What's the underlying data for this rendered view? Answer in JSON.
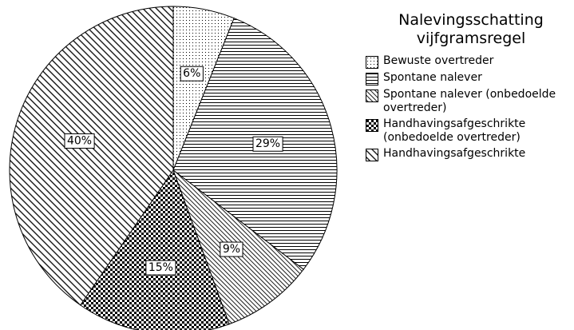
{
  "chart_data": {
    "type": "pie",
    "title": "Nalevingsschatting vijfgramsregel",
    "categories": [
      "Bewuste overtreder",
      "Spontane nalever",
      "Spontane nalever (onbedoelde overtreder)",
      "Handhavingsafgeschrikte (onbedoelde overtreder)",
      "Handhavingsafgeschrikte"
    ],
    "values": [
      6,
      29,
      9,
      15,
      40
    ],
    "value_labels": [
      "6%",
      "29%",
      "9%",
      "15%",
      "40%"
    ],
    "patterns": [
      "dots",
      "horizontal",
      "diagonal-fine",
      "checker",
      "diagonal"
    ],
    "legend": "right"
  }
}
